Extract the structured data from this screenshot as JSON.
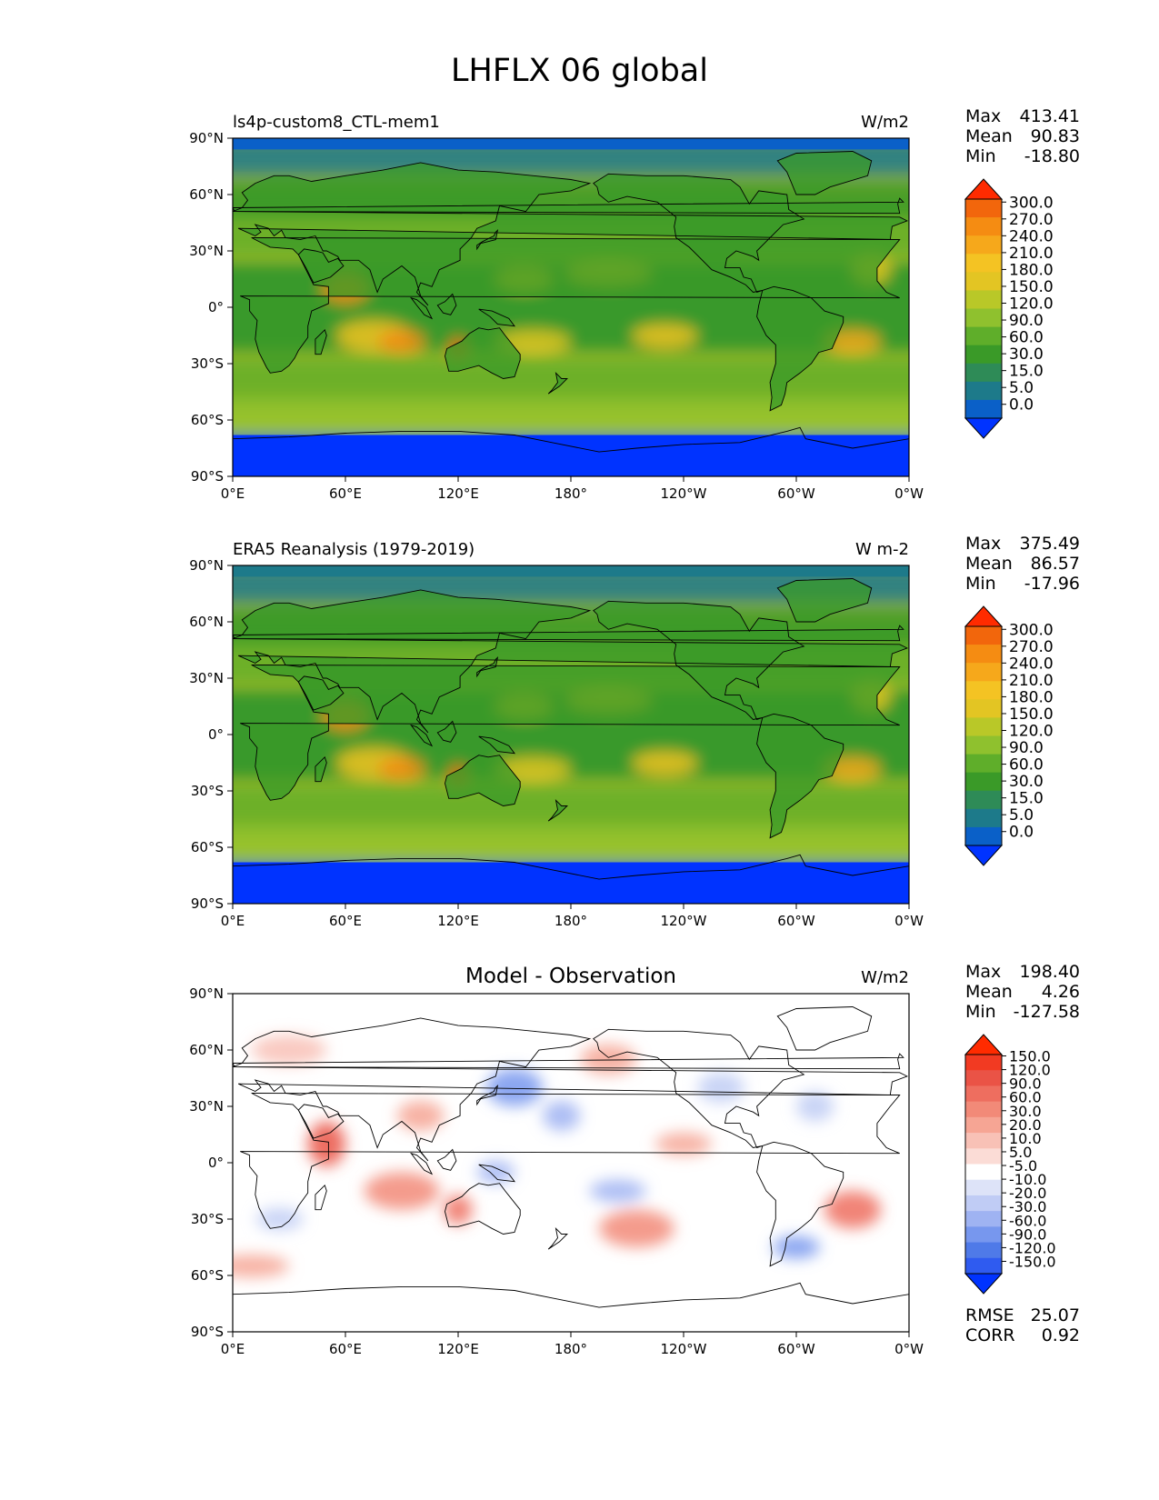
{
  "figure_title": "LHFLX 06 global",
  "axes": {
    "lat_ticks": [
      "90°N",
      "60°N",
      "30°N",
      "0°",
      "30°S",
      "60°S",
      "90°S"
    ],
    "lon_ticks": [
      "0°E",
      "60°E",
      "120°E",
      "180°",
      "120°W",
      "60°W",
      "0°W"
    ]
  },
  "colors": {
    "field_scale": [
      "#0033ff",
      "#0a60c8",
      "#1d7a8a",
      "#2e8b57",
      "#3a9a28",
      "#5fae2a",
      "#8fc12e",
      "#b9c828",
      "#e3c523",
      "#f4c323",
      "#f6a81b",
      "#f58c12",
      "#f2660c",
      "#ff2b00"
    ],
    "diff_scale": [
      "#0033ff",
      "#2f5bf0",
      "#4f7ae8",
      "#7797ee",
      "#9fb3f2",
      "#c0ccf5",
      "#dde3f8",
      "#ffffff",
      "#fbdcd6",
      "#f8c1b6",
      "#f6a594",
      "#f28a78",
      "#ee6e5f",
      "#ea5346",
      "#f23a22",
      "#ff2b00"
    ],
    "ocean_field": "#e6c927",
    "land_field": "#3a9a28",
    "ice_field": "#0033ff"
  },
  "panels": [
    {
      "left_title": "ls4p-custom8_CTL-mem1",
      "center_title": "",
      "units": "W/m2",
      "stats": {
        "max_label": "Max",
        "max": "413.41",
        "mean_label": "Mean",
        "mean": "90.83",
        "min_label": "Min",
        "min": "-18.80"
      },
      "colorbar": {
        "extend": "both",
        "labels": [
          "300.0",
          "270.0",
          "240.0",
          "210.0",
          "180.0",
          "150.0",
          "120.0",
          "90.0",
          "60.0",
          "30.0",
          "15.0",
          "5.0",
          "0.0"
        ]
      },
      "extra": []
    },
    {
      "left_title": "ERA5 Reanalysis (1979-2019)",
      "center_title": "",
      "units": "W m-2",
      "stats": {
        "max_label": "Max",
        "max": "375.49",
        "mean_label": "Mean",
        "mean": "86.57",
        "min_label": "Min",
        "min": "-17.96"
      },
      "colorbar": {
        "extend": "both",
        "labels": [
          "300.0",
          "270.0",
          "240.0",
          "210.0",
          "180.0",
          "150.0",
          "120.0",
          "90.0",
          "60.0",
          "30.0",
          "15.0",
          "5.0",
          "0.0"
        ]
      },
      "extra": []
    },
    {
      "left_title": "",
      "center_title": "Model - Observation",
      "units": "W/m2",
      "stats": {
        "max_label": "Max",
        "max": "198.40",
        "mean_label": "Mean",
        "mean": "4.26",
        "min_label": "Min",
        "min": "-127.58"
      },
      "colorbar": {
        "extend": "both",
        "labels": [
          "150.0",
          "120.0",
          "90.0",
          "60.0",
          "30.0",
          "20.0",
          "10.0",
          "5.0",
          "-5.0",
          "-10.0",
          "-20.0",
          "-30.0",
          "-60.0",
          "-90.0",
          "-120.0",
          "-150.0"
        ]
      },
      "extra": [
        {
          "label": "RMSE",
          "value": "25.07"
        },
        {
          "label": "CORR",
          "value": "0.92"
        }
      ]
    }
  ],
  "chart_data": [
    {
      "type": "heatmap",
      "title": "ls4p-custom8_CTL-mem1",
      "variable": "LHFLX",
      "units": "W/m2",
      "x_range": [
        0,
        360
      ],
      "y_range": [
        -90,
        90
      ],
      "levels": [
        0,
        5,
        15,
        30,
        60,
        90,
        120,
        150,
        180,
        210,
        240,
        270,
        300
      ],
      "max": 413.41,
      "mean": 90.83,
      "min": -18.8
    },
    {
      "type": "heatmap",
      "title": "ERA5 Reanalysis (1979-2019)",
      "variable": "LHFLX",
      "units": "W m-2",
      "x_range": [
        0,
        360
      ],
      "y_range": [
        -90,
        90
      ],
      "levels": [
        0,
        5,
        15,
        30,
        60,
        90,
        120,
        150,
        180,
        210,
        240,
        270,
        300
      ],
      "max": 375.49,
      "mean": 86.57,
      "min": -17.96
    },
    {
      "type": "heatmap",
      "title": "Model - Observation",
      "variable": "LHFLX difference",
      "units": "W/m2",
      "x_range": [
        0,
        360
      ],
      "y_range": [
        -90,
        90
      ],
      "levels": [
        -150,
        -120,
        -90,
        -60,
        -30,
        -20,
        -10,
        -5,
        5,
        10,
        20,
        30,
        60,
        90,
        120,
        150
      ],
      "max": 198.4,
      "mean": 4.26,
      "min": -127.58,
      "rmse": 25.07,
      "corr": 0.92
    }
  ]
}
